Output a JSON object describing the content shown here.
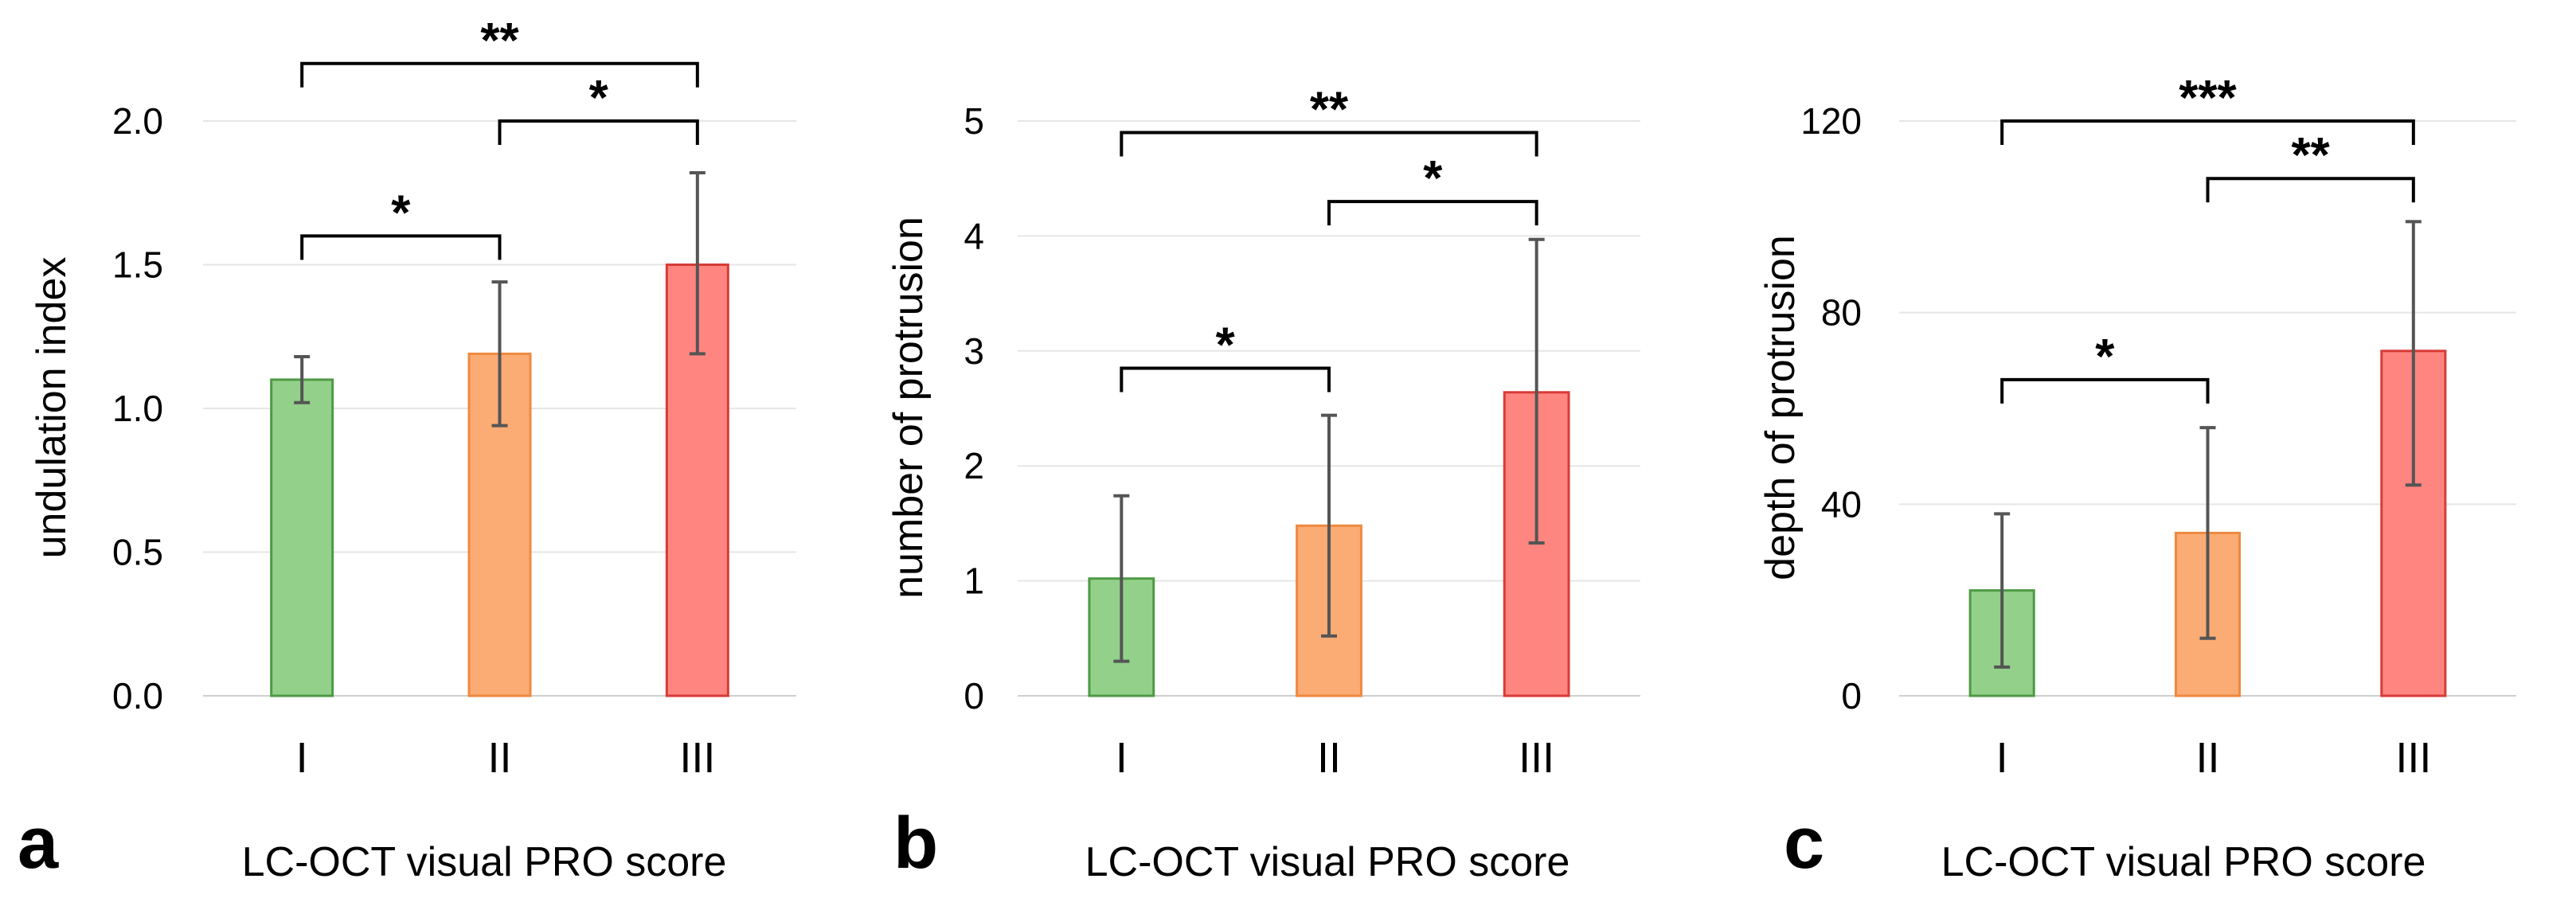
{
  "chart_data": [
    {
      "type": "bar",
      "panel_label": "a",
      "xlabel": "LC-OCT visual PRO score",
      "ylabel": "undulation index",
      "categories": [
        "I",
        "II",
        "III"
      ],
      "values": [
        1.1,
        1.19,
        1.5
      ],
      "error": [
        [
          1.02,
          1.18
        ],
        [
          0.94,
          1.44
        ],
        [
          1.19,
          1.82
        ]
      ],
      "ylim": [
        0,
        2.0
      ],
      "yticks": [
        0,
        0.5,
        1.0,
        1.5,
        2.0
      ],
      "ytick_labels": [
        "0.0",
        "0.5",
        "1.0",
        "1.5",
        "2.0"
      ],
      "grid": true,
      "colors": {
        "fill": [
          "#93d18a",
          "#fbab74",
          "#fe8580"
        ],
        "edge": [
          "#4d9a44",
          "#ee8a40",
          "#d83b36"
        ]
      },
      "significance": [
        {
          "from": 0,
          "to": 1,
          "label": "*",
          "level": 1.6
        },
        {
          "from": 1,
          "to": 2,
          "label": "*",
          "level": 2.0
        },
        {
          "from": 0,
          "to": 2,
          "label": "**",
          "level": 2.2
        }
      ]
    },
    {
      "type": "bar",
      "panel_label": "b",
      "xlabel": "LC-OCT visual PRO score",
      "ylabel": "number of protrusion",
      "categories": [
        "I",
        "II",
        "III"
      ],
      "values": [
        1.02,
        1.48,
        2.64
      ],
      "error": [
        [
          0.3,
          1.74
        ],
        [
          0.52,
          2.44
        ],
        [
          1.33,
          3.97
        ]
      ],
      "ylim": [
        0,
        5
      ],
      "yticks": [
        0,
        1,
        2,
        3,
        4,
        5
      ],
      "ytick_labels": [
        "0",
        "1",
        "2",
        "3",
        "4",
        "5"
      ],
      "grid": true,
      "colors": {
        "fill": [
          "#93d18a",
          "#fbab74",
          "#fe8580"
        ],
        "edge": [
          "#4d9a44",
          "#ee8a40",
          "#d83b36"
        ]
      },
      "significance": [
        {
          "from": 0,
          "to": 1,
          "label": "*",
          "level": 2.85
        },
        {
          "from": 1,
          "to": 2,
          "label": "*",
          "level": 4.3
        },
        {
          "from": 0,
          "to": 2,
          "label": "**",
          "level": 4.9
        }
      ]
    },
    {
      "type": "bar",
      "panel_label": "c",
      "xlabel": "LC-OCT visual PRO score",
      "ylabel": "depth of protrusion",
      "categories": [
        "I",
        "II",
        "III"
      ],
      "values": [
        22,
        34,
        72
      ],
      "error": [
        [
          6,
          38
        ],
        [
          12,
          56
        ],
        [
          44,
          99
        ]
      ],
      "ylim": [
        0,
        120
      ],
      "yticks": [
        0,
        40,
        80,
        120
      ],
      "ytick_labels": [
        "0",
        "40",
        "80",
        "120"
      ],
      "grid": true,
      "colors": {
        "fill": [
          "#93d18a",
          "#fbab74",
          "#fe8580"
        ],
        "edge": [
          "#4d9a44",
          "#ee8a40",
          "#d83b36"
        ]
      },
      "significance": [
        {
          "from": 0,
          "to": 1,
          "label": "*",
          "level": 66
        },
        {
          "from": 1,
          "to": 2,
          "label": "**",
          "level": 108
        },
        {
          "from": 0,
          "to": 2,
          "label": "***",
          "level": 120
        }
      ]
    }
  ]
}
